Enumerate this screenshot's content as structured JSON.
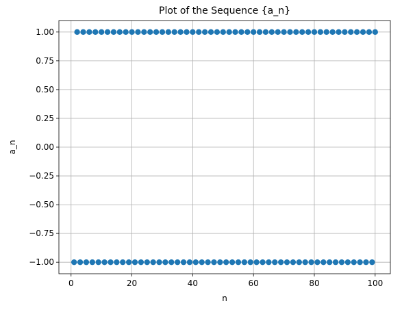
{
  "chart_data": {
    "type": "scatter",
    "title": "Plot of the Sequence {a_n}",
    "xlabel": "n",
    "ylabel": "a_n",
    "xlim": [
      -4,
      105
    ],
    "ylim": [
      -1.1,
      1.1
    ],
    "grid": true,
    "marker_color": "#1f77b4",
    "formula": "a_n = (-1)^n",
    "n_range": [
      1,
      100
    ],
    "xticks": [
      0,
      20,
      40,
      60,
      80,
      100
    ],
    "xtick_labels": [
      "0",
      "20",
      "40",
      "60",
      "80",
      "100"
    ],
    "yticks": [
      -1.0,
      -0.75,
      -0.5,
      -0.25,
      0.0,
      0.25,
      0.5,
      0.75,
      1.0
    ],
    "ytick_labels": [
      "−1.00",
      "−0.75",
      "−0.50",
      "−0.25",
      "0.00",
      "0.25",
      "0.50",
      "0.75",
      "1.00"
    ]
  }
}
